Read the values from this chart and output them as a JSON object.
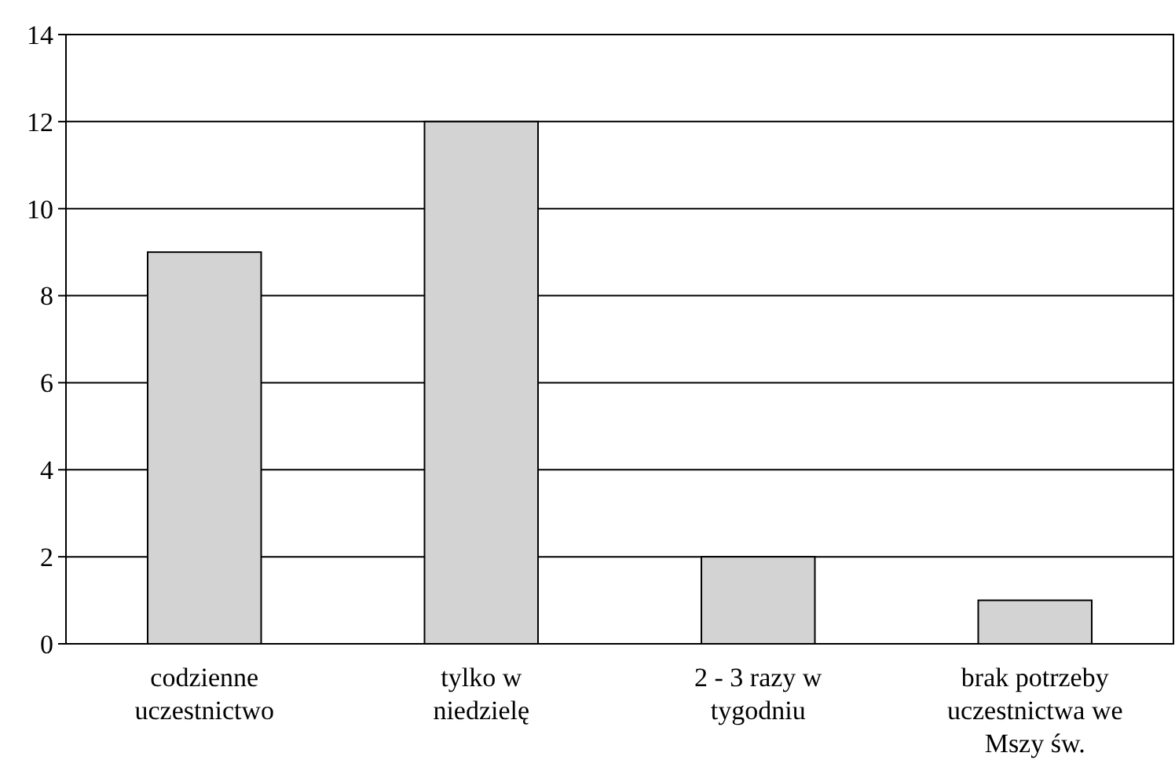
{
  "chart_data": {
    "type": "bar",
    "categories": [
      "codzienne\nuczestnictwo",
      "tylko w\nniedzielę",
      "2 - 3 razy w\ntygodniu",
      "brak potrzeby\nuczestnictwa we\nMszy św."
    ],
    "values": [
      9,
      12,
      2,
      1
    ],
    "color": "#d3d3d3",
    "ylim": [
      0,
      14
    ],
    "yticks": [
      0,
      2,
      4,
      6,
      8,
      10,
      12,
      14
    ],
    "grid": "y"
  }
}
